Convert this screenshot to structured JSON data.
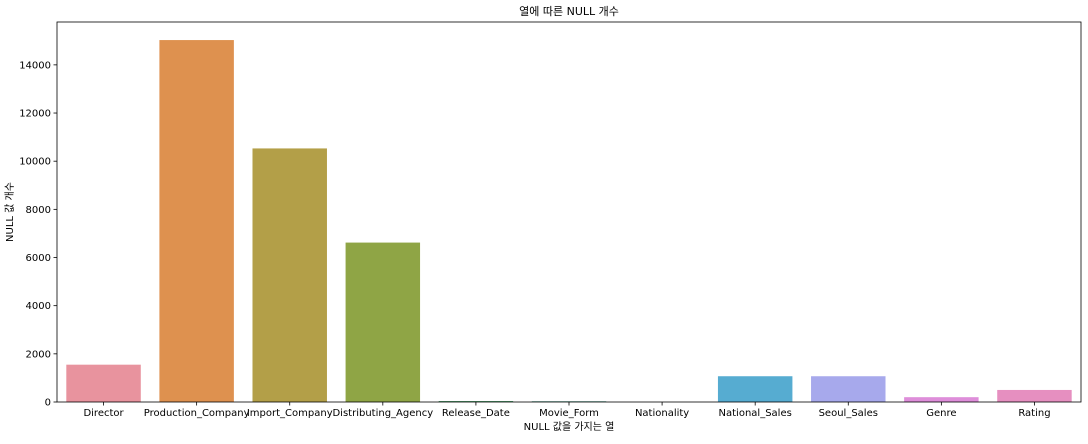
{
  "chart_data": {
    "type": "bar",
    "title": "열에 따른 NULL 개수",
    "xlabel": "NULL 값을 가지는 열",
    "ylabel": "NULL 값 개수",
    "categories": [
      "Director",
      "Production_Company",
      "Import_Company",
      "Distributing_Agency",
      "Release_Date",
      "Movie_Form",
      "Nationality",
      "National_Sales",
      "Seoul_Sales",
      "Genre",
      "Rating"
    ],
    "values": [
      1550,
      15030,
      10530,
      6620,
      40,
      30,
      0,
      1070,
      1070,
      200,
      500
    ],
    "colors": [
      "#E8939E",
      "#DE914F",
      "#B39F48",
      "#8FA545",
      "#4D9E6B",
      "#4FA08C",
      "#52A3A6",
      "#56ACD1",
      "#A7A9EC",
      "#DE8EDA",
      "#E68FC0"
    ],
    "yticks": [
      0,
      2000,
      4000,
      6000,
      8000,
      10000,
      12000,
      14000
    ],
    "ylim": [
      0,
      15780
    ],
    "grid": false,
    "legend": "none"
  }
}
